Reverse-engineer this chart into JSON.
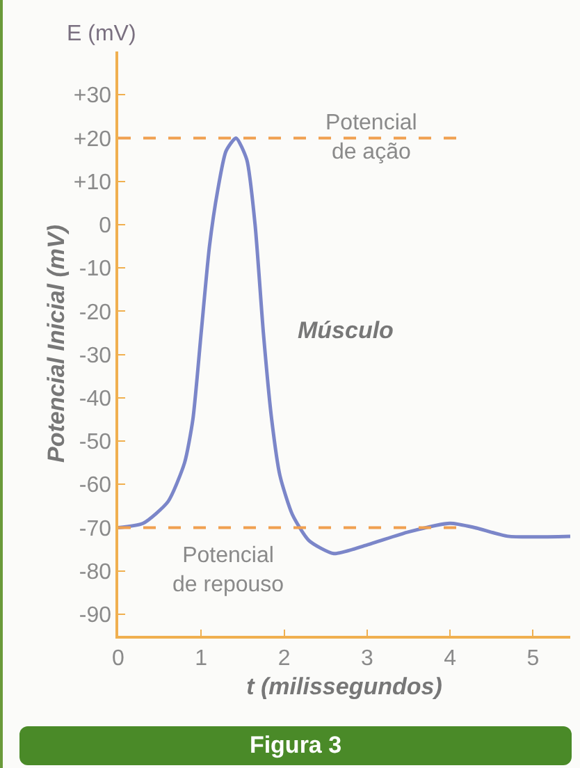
{
  "chart_data": {
    "type": "line",
    "title": "Figura 3",
    "xlabel": "t (milissegundos)",
    "ylabel": "Potencial Inicial (mV)",
    "annotations": [
      "E (mV)"
    ],
    "xlim": [
      0,
      5.45
    ],
    "ylim": [
      -95,
      40
    ],
    "xticks": [
      0,
      1,
      2,
      3,
      4,
      5
    ],
    "yticks": [
      {
        "value": 30,
        "label": "+30"
      },
      {
        "value": 20,
        "label": "+20"
      },
      {
        "value": 10,
        "label": "+10"
      },
      0,
      -10,
      -20,
      -30,
      -40,
      -50,
      -60,
      -70,
      -80,
      -90
    ],
    "grid": false,
    "legend": false,
    "marker": "none",
    "line_style": "solid",
    "series": [
      {
        "name": "Músculo",
        "color": "#7b86c9",
        "x": [
          0,
          0.3,
          0.6,
          0.8,
          0.9,
          1.0,
          1.1,
          1.2,
          1.3,
          1.42,
          1.55,
          1.65,
          1.75,
          1.85,
          1.95,
          2.1,
          2.3,
          2.6,
          3.0,
          3.5,
          4.0,
          4.3,
          4.7,
          5.45
        ],
        "values": [
          -70,
          -69,
          -64,
          -55,
          -45,
          -25,
          -5,
          8,
          17,
          20,
          15,
          0,
          -25,
          -45,
          -58,
          -67,
          -73,
          -76,
          -74,
          -71,
          -69,
          -70,
          -72,
          -72
        ]
      }
    ],
    "ref_lines": [
      {
        "axis": "y",
        "value": 20,
        "label": "Potencial de ação",
        "color": "#f0a050",
        "line_style": "dashed"
      },
      {
        "axis": "y",
        "value": -70,
        "label": "Potencial de repouso",
        "color": "#f0a050",
        "line_style": "dashed"
      }
    ]
  }
}
